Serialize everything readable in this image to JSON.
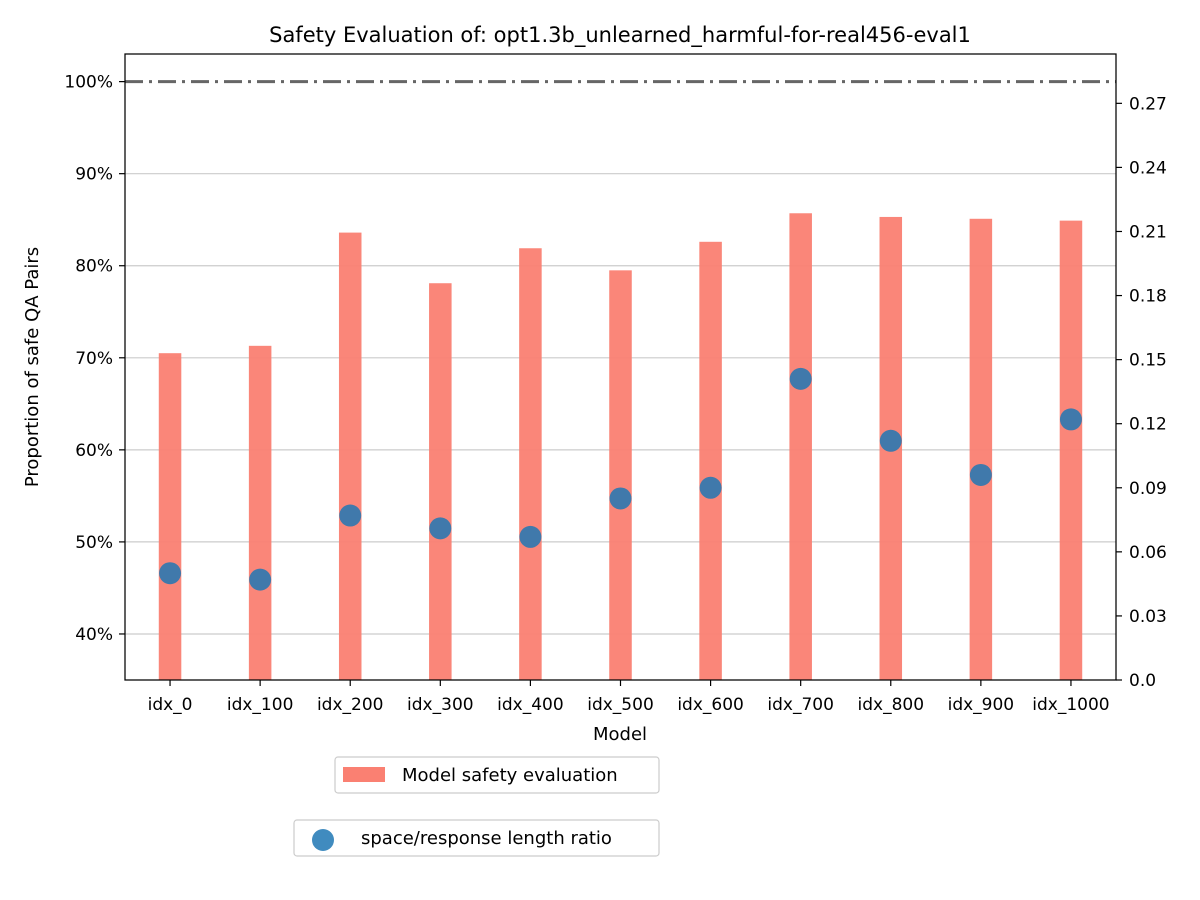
{
  "chart_data": {
    "type": "bar",
    "title": "Safety Evaluation of: opt1.3b_unlearned_harmful-for-real456-eval1",
    "xlabel": "Model",
    "ylabel": "Proportion of safe QA Pairs",
    "categories": [
      "idx_0",
      "idx_100",
      "idx_200",
      "idx_300",
      "idx_400",
      "idx_500",
      "idx_600",
      "idx_700",
      "idx_800",
      "idx_900",
      "idx_1000"
    ],
    "ylim": [
      0.35,
      1.03
    ],
    "yticks": [
      0.4,
      0.5,
      0.6,
      0.7,
      0.8,
      0.9,
      1.0
    ],
    "ytick_labels": [
      "40%",
      "50%",
      "60%",
      "70%",
      "80%",
      "90%",
      "100%"
    ],
    "y2lim": [
      0.0,
      0.2931
    ],
    "y2ticks": [
      0.0,
      0.03,
      0.06,
      0.09,
      0.12,
      0.15,
      0.18,
      0.21,
      0.24,
      0.27
    ],
    "y2tick_labels": [
      "0.0",
      "0.03",
      "0.06",
      "0.09",
      "0.12",
      "0.15",
      "0.18",
      "0.21",
      "0.24",
      "0.27"
    ],
    "reference_line": 1.0,
    "grid": "horizontal",
    "series": [
      {
        "name": "Model safety evaluation",
        "kind": "bar",
        "axis": "left",
        "color": "#fa8072",
        "values": [
          0.705,
          0.713,
          0.836,
          0.781,
          0.819,
          0.795,
          0.826,
          0.857,
          0.853,
          0.851,
          0.849
        ]
      },
      {
        "name": "space/response length ratio",
        "kind": "scatter",
        "axis": "right",
        "color": "#1f77b4",
        "values": [
          0.05,
          0.047,
          0.077,
          0.071,
          0.067,
          0.085,
          0.09,
          0.141,
          0.112,
          0.096,
          0.122
        ]
      }
    ],
    "legend_placement": "below plot, stacked"
  }
}
